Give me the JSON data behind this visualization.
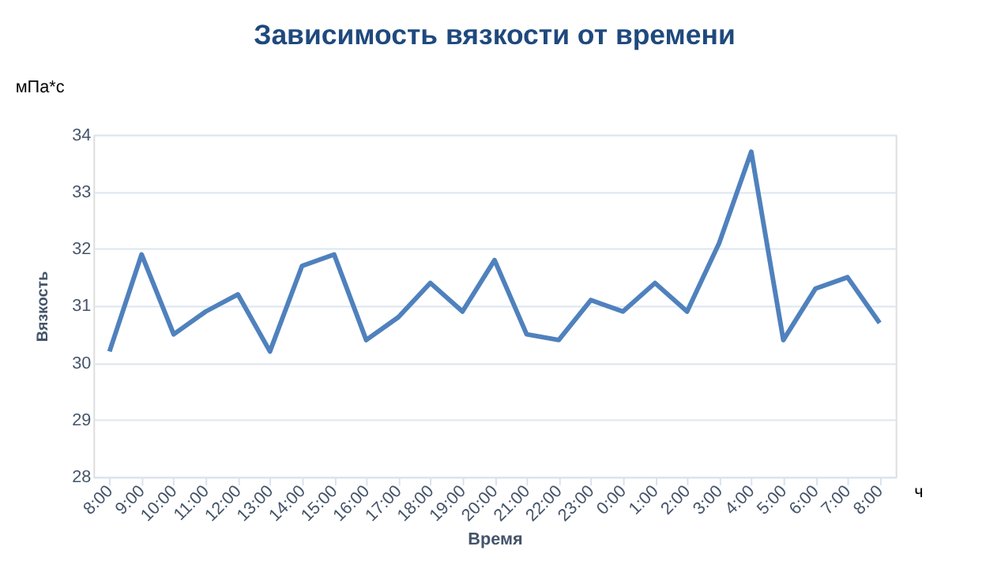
{
  "chart_data": {
    "type": "line",
    "title": "Зависимость вязкости от времени",
    "xlabel": "Время",
    "ylabel": "Вязкость",
    "annotations": [
      "мПа*с",
      "ч"
    ],
    "categories": [
      "8:00",
      "9:00",
      "10:00",
      "11:00",
      "12:00",
      "13:00",
      "14:00",
      "15:00",
      "16:00",
      "17:00",
      "18:00",
      "19:00",
      "20:00",
      "21:00",
      "22:00",
      "23:00",
      "0:00",
      "1:00",
      "2:00",
      "3:00",
      "4:00",
      "5:00",
      "6:00",
      "7:00",
      "8:00"
    ],
    "series": [
      {
        "color": "#4f81bd",
        "values": [
          30.2,
          31.9,
          30.5,
          30.9,
          31.2,
          30.2,
          31.7,
          31.9,
          30.4,
          30.8,
          31.4,
          30.9,
          31.8,
          30.5,
          30.4,
          31.1,
          30.9,
          31.4,
          30.9,
          32.1,
          33.7,
          30.4,
          31.3,
          31.5,
          30.7
        ]
      }
    ],
    "ylim": [
      28,
      34
    ],
    "yticks": [
      28,
      29,
      30,
      31,
      32,
      33,
      34
    ],
    "grid": "y",
    "legend": false,
    "marker": "none",
    "line_style": "solid"
  }
}
